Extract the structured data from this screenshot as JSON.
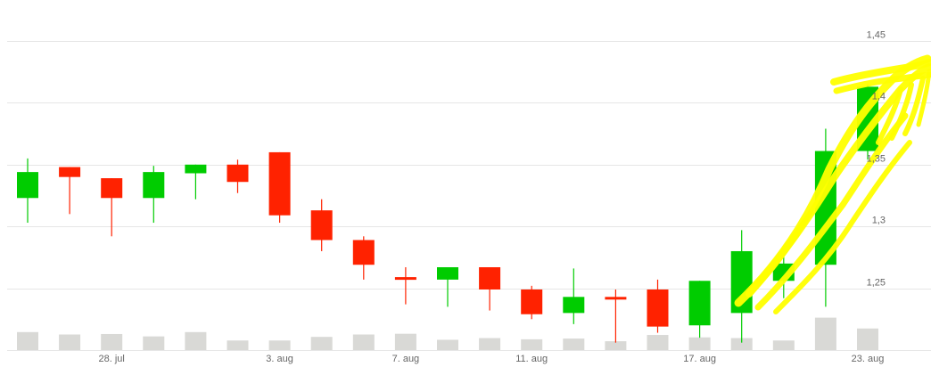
{
  "chart_data": {
    "type": "candlestick",
    "title": "",
    "xlabel": "",
    "ylabel": "",
    "ylim": [
      1.2,
      1.45
    ],
    "y_ticks": [
      "1,25",
      "1,3",
      "1,35",
      "1,4",
      "1,45"
    ],
    "y_tick_values": [
      1.25,
      1.3,
      1.35,
      1.4,
      1.45
    ],
    "y_axis_position": "right",
    "grid": true,
    "x_tick_labels": [
      {
        "label": "28. jul",
        "index": 2
      },
      {
        "label": "3. aug",
        "index": 6
      },
      {
        "label": "7. aug",
        "index": 9
      },
      {
        "label": "11. aug",
        "index": 12
      },
      {
        "label": "17. aug",
        "index": 16
      },
      {
        "label": "23. aug",
        "index": 20
      }
    ],
    "colors": {
      "up": "#00cc00",
      "down": "#ff2200",
      "volume": "#d9d9d6",
      "grid": "#e6e6e6",
      "highlight": "#ffff00"
    },
    "candles": [
      {
        "open": 1.323,
        "high": 1.355,
        "low": 1.303,
        "close": 1.344
      },
      {
        "open": 1.348,
        "high": 1.348,
        "low": 1.31,
        "close": 1.34
      },
      {
        "open": 1.339,
        "high": 1.339,
        "low": 1.292,
        "close": 1.323
      },
      {
        "open": 1.323,
        "high": 1.349,
        "low": 1.303,
        "close": 1.344
      },
      {
        "open": 1.343,
        "high": 1.35,
        "low": 1.322,
        "close": 1.35
      },
      {
        "open": 1.35,
        "high": 1.354,
        "low": 1.327,
        "close": 1.336
      },
      {
        "open": 1.36,
        "high": 1.36,
        "low": 1.303,
        "close": 1.309
      },
      {
        "open": 1.313,
        "high": 1.322,
        "low": 1.28,
        "close": 1.289
      },
      {
        "open": 1.289,
        "high": 1.292,
        "low": 1.257,
        "close": 1.269
      },
      {
        "open": 1.259,
        "high": 1.267,
        "low": 1.237,
        "close": 1.257
      },
      {
        "open": 1.257,
        "high": 1.267,
        "low": 1.235,
        "close": 1.267
      },
      {
        "open": 1.267,
        "high": 1.267,
        "low": 1.232,
        "close": 1.249
      },
      {
        "open": 1.249,
        "high": 1.252,
        "low": 1.225,
        "close": 1.229
      },
      {
        "open": 1.23,
        "high": 1.266,
        "low": 1.221,
        "close": 1.243
      },
      {
        "open": 1.243,
        "high": 1.249,
        "low": 1.206,
        "close": 1.241
      },
      {
        "open": 1.249,
        "high": 1.257,
        "low": 1.214,
        "close": 1.219
      },
      {
        "open": 1.22,
        "high": 1.256,
        "low": 1.21,
        "close": 1.256
      },
      {
        "open": 1.23,
        "high": 1.297,
        "low": 1.206,
        "close": 1.28
      },
      {
        "open": 1.256,
        "high": 1.277,
        "low": 1.242,
        "close": 1.27
      },
      {
        "open": 1.269,
        "high": 1.379,
        "low": 1.235,
        "close": 1.361
      },
      {
        "open": 1.361,
        "high": 1.415,
        "low": 1.354,
        "close": 1.413
      }
    ],
    "volume_relative": [
      0.6,
      0.5,
      0.52,
      0.42,
      0.6,
      0.25,
      0.25,
      0.4,
      0.5,
      0.53,
      0.28,
      0.35,
      0.3,
      0.33,
      0.22,
      0.48,
      0.38,
      0.35,
      0.25,
      1.2,
      0.75
    ]
  }
}
